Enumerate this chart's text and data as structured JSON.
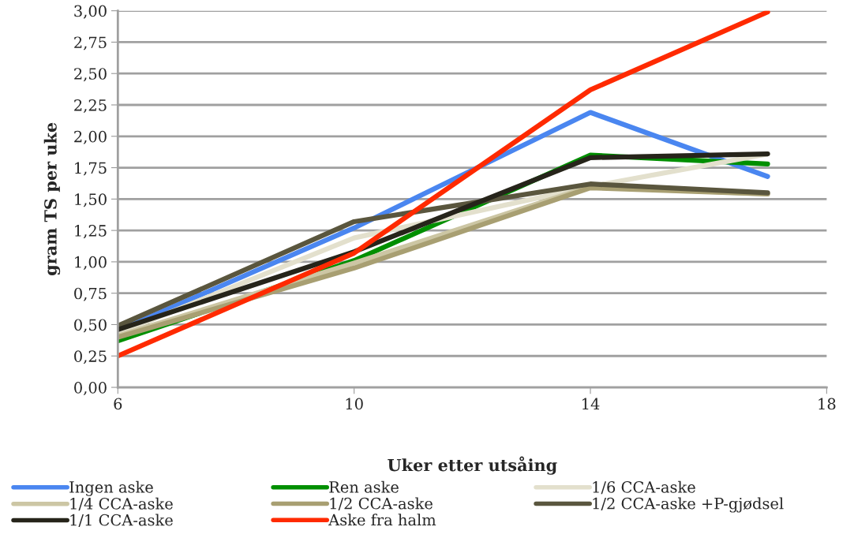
{
  "chart_data": {
    "type": "line",
    "xlabel": "Uker etter utsåing",
    "ylabel": "gram TS per uke",
    "x": [
      6,
      10,
      14,
      17
    ],
    "series": [
      {
        "name": "Ingen aske",
        "color": "#4a86f0",
        "values": [
          0.45,
          1.27,
          2.19,
          1.68
        ]
      },
      {
        "name": "Ren aske",
        "color": "#008f00",
        "values": [
          0.37,
          1.01,
          1.85,
          1.78
        ]
      },
      {
        "name": "1/6 CCA-aske",
        "color": "#e3e0cd",
        "values": [
          0.43,
          1.19,
          1.6,
          1.86
        ]
      },
      {
        "name": "1/4 CCA-aske",
        "color": "#ccc6a4",
        "values": [
          0.41,
          0.99,
          1.6,
          1.54
        ]
      },
      {
        "name": "1/2 CCA-aske",
        "color": "#a89f72",
        "values": [
          0.4,
          0.95,
          1.59,
          1.54
        ]
      },
      {
        "name": "1/2 CCA-aske +P-gjødsel",
        "color": "#5a563e",
        "values": [
          0.49,
          1.32,
          1.62,
          1.55
        ]
      },
      {
        "name": "1/1 CCA-aske",
        "color": "#26241a",
        "values": [
          0.46,
          1.08,
          1.83,
          1.86
        ]
      },
      {
        "name": "Aske fra halm",
        "color": "#ff2a00",
        "values": [
          0.25,
          1.07,
          2.37,
          2.99
        ]
      }
    ],
    "xlim": [
      6,
      18
    ],
    "xticks": [
      6,
      10,
      14,
      18
    ],
    "ylim": [
      0,
      3
    ],
    "yticks": [
      {
        "value": 0,
        "label": "0,00"
      },
      {
        "value": 0.25,
        "label": "0,25"
      },
      {
        "value": 0.5,
        "label": "0,50"
      },
      {
        "value": 0.75,
        "label": "0,75"
      },
      {
        "value": 1,
        "label": "1,00"
      },
      {
        "value": 1.25,
        "label": "1,25"
      },
      {
        "value": 1.5,
        "label": "1,50"
      },
      {
        "value": 1.75,
        "label": "1,75"
      },
      {
        "value": 2,
        "label": "2,00"
      },
      {
        "value": 2.25,
        "label": "2,25"
      },
      {
        "value": 2.5,
        "label": "2,50"
      },
      {
        "value": 2.75,
        "label": "2,75"
      },
      {
        "value": 3,
        "label": "3,00"
      }
    ],
    "grid": "y",
    "legend": "bottom",
    "line_style": "solid"
  }
}
